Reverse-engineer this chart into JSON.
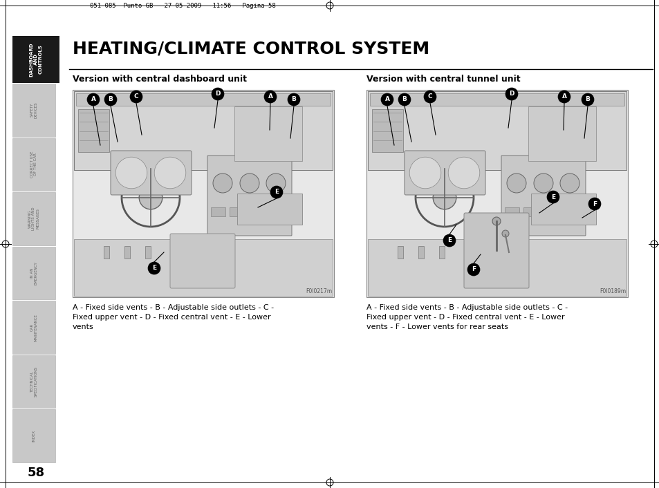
{
  "title": "HEATING/CLIMATE CONTROL SYSTEM",
  "subtitle_left": "Version with central dashboard unit",
  "subtitle_right": "Version with central tunnel unit",
  "cap_left_lines": [
    "A - Fixed side vents - B - Adjustable side outlets - C -",
    "Fixed upper vent - D - Fixed central vent - E - Lower",
    "vents"
  ],
  "cap_right_lines": [
    "A - Fixed side vents - B - Adjustable side outlets - C -",
    "Fixed upper vent - D - Fixed central vent - E - Lower",
    "vents - F - Lower vents for rear seats"
  ],
  "header_text": "051-085  Punto GB   27-05-2009   11:56   Pagina 58",
  "page_number": "58",
  "sidebar_labels": [
    "DASHBOARD\nAND\nCONTROLS",
    "SAFETY\nDEVICES",
    "CORRECT USE\nOF THE CAR",
    "WARNING\nLIGHTS AND\nMESSAGES",
    "IN AN\nEMERGENCY",
    "CAR\nMAINTENANCE",
    "TECHNICAL\nSPECIFICATIONS",
    "INDEX"
  ],
  "fig_ref_left": "F0I0217m",
  "fig_ref_right": "F0I0189m",
  "bg_color": "#ffffff",
  "sidebar_active_color": "#1a1a1a",
  "sidebar_inactive_color": "#c8c8c8",
  "sidebar_text_inactive": "#666666"
}
